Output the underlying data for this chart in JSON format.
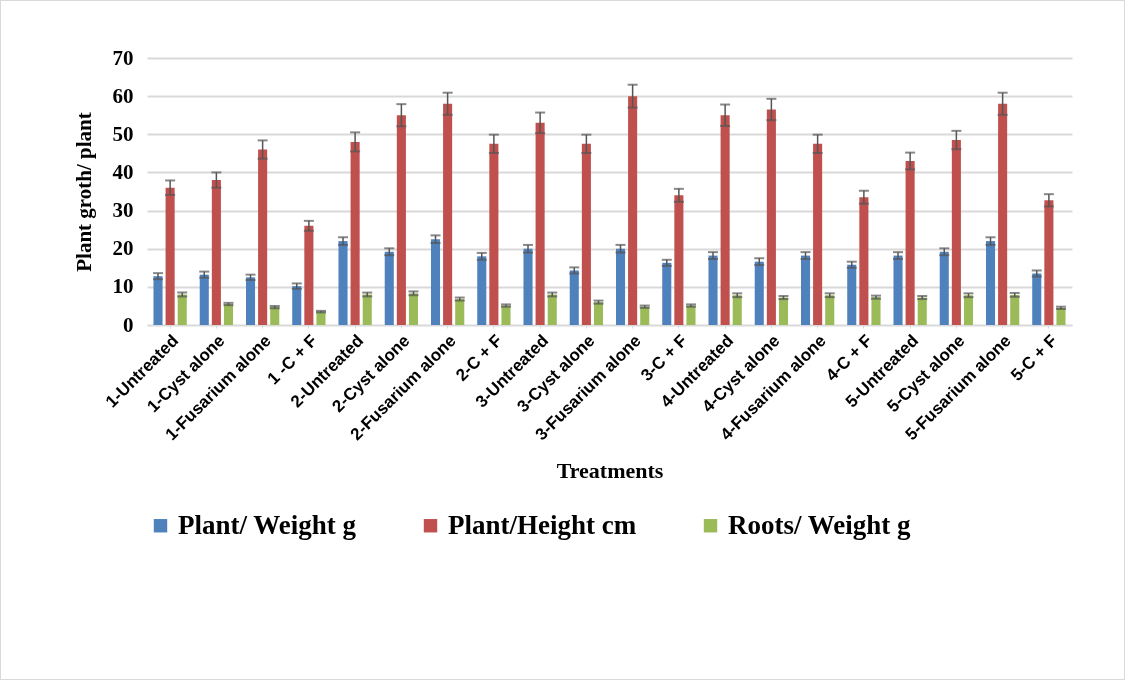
{
  "chart_data": {
    "type": "bar",
    "xlabel": "Treatments",
    "ylabel": "Plant groth/ plant",
    "categories": [
      "1-Untreated",
      "1-Cyst alone",
      "1-Fusarium alone",
      "1 -C + F",
      "2-Untreated",
      "2-Cyst alone",
      "2-Fusarium alone",
      "2-C + F",
      "3-Untreated",
      "3-Cyst alone",
      "3-Fusarium alone",
      "3-C + F",
      "4-Untreated",
      "4-Cyst alone",
      "4-Fusarium alone",
      "4-C + F",
      "5-Untreated",
      "5-Cyst alone",
      "5-Fusarium alone",
      "5-C + F"
    ],
    "series": [
      {
        "name": "Plant/ Weight g",
        "color": "#4f81bd",
        "values": [
          12.8,
          13.2,
          12.5,
          10.2,
          22,
          19.2,
          22.5,
          18,
          20,
          14.3,
          20,
          16.3,
          18.2,
          16.6,
          18.2,
          15.8,
          18.2,
          19.2,
          22,
          13.5
        ],
        "errors": [
          0.8,
          0.8,
          0.7,
          0.7,
          1,
          0.9,
          1,
          0.9,
          1,
          0.8,
          1,
          0.8,
          0.9,
          0.9,
          0.9,
          0.8,
          0.9,
          0.9,
          1,
          0.8
        ]
      },
      {
        "name": "Plant/Height cm",
        "color": "#c0504d",
        "values": [
          36,
          38,
          46,
          26,
          48,
          55,
          58,
          47.5,
          53,
          47.5,
          60,
          34,
          55,
          56.5,
          47.5,
          33.5,
          43,
          48.5,
          58,
          32.7
        ],
        "errors": [
          1.9,
          2,
          2.4,
          1.3,
          2.5,
          2.9,
          2.9,
          2.4,
          2.7,
          2.4,
          3,
          1.7,
          2.8,
          2.8,
          2.4,
          1.7,
          2.2,
          2.4,
          2.9,
          1.6
        ]
      },
      {
        "name": "Roots/ Weight g",
        "color": "#9bbb59",
        "values": [
          8,
          5.5,
          4.7,
          3.5,
          8,
          8.3,
          6.8,
          5.1,
          8,
          6,
          4.8,
          5.1,
          7.8,
          7.2,
          7.8,
          7.3,
          7.2,
          7.8,
          7.9,
          4.5
        ],
        "errors": [
          0.5,
          0.3,
          0.3,
          0.2,
          0.5,
          0.5,
          0.4,
          0.3,
          0.5,
          0.4,
          0.3,
          0.3,
          0.5,
          0.4,
          0.5,
          0.4,
          0.4,
          0.5,
          0.5,
          0.3
        ]
      }
    ],
    "ylim": [
      0,
      70
    ],
    "yticks": [
      0,
      10,
      20,
      30,
      40,
      50,
      60,
      70
    ],
    "grid": "y",
    "legend": "bottom"
  }
}
